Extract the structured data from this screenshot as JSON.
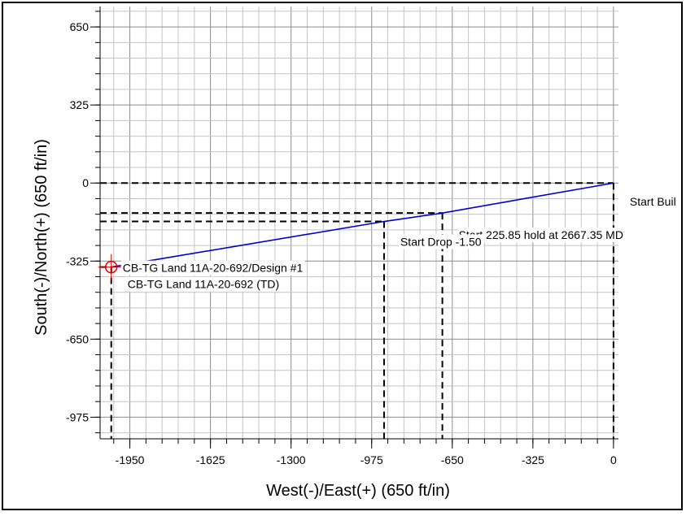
{
  "chart_data": {
    "type": "line",
    "xlabel": "West(-)/East(+) (650 ft/in)",
    "ylabel": "South(-)/North(+) (650 ft/in)",
    "xlim": [
      -2070,
      20
    ],
    "ylim": [
      -1065,
      735
    ],
    "x_ticks": [
      -1950,
      -1625,
      -1300,
      -975,
      -650,
      -325,
      0
    ],
    "y_ticks": [
      650,
      325,
      0,
      -325,
      -650,
      -975
    ],
    "x_tick_labels": [
      "-1950",
      "-1625",
      "-1300",
      "-975",
      "-650",
      "-325",
      "0"
    ],
    "y_tick_labels": [
      "650",
      "325",
      "0",
      "-325",
      "-650",
      "-975"
    ],
    "grid": true,
    "series": [
      {
        "color": "#0000cc",
        "x": [
          0,
          -690,
          -925,
          -2025
        ],
        "y": [
          0,
          -125,
          -160,
          -350
        ]
      }
    ],
    "markers": [
      {
        "x": 0,
        "y": 0
      },
      {
        "x": -690,
        "y": -125
      },
      {
        "x": -925,
        "y": -160
      },
      {
        "x": -2025,
        "y": -350
      }
    ],
    "target": {
      "x": -2025,
      "y": -350,
      "color": "#dd0000"
    },
    "annotations": [
      {
        "text": "Start Buil",
        "x": 0,
        "y": 0
      },
      {
        "text": "Start 225.85 hold at 2667.35 MD",
        "x": -690,
        "y": -125
      },
      {
        "text": "Start Drop -1.50",
        "x": -925,
        "y": -160
      },
      {
        "text": "CB-TG Land 11A-20-692/Design #1",
        "x": -2025,
        "y": -350
      },
      {
        "text": "CB-TG Land 11A-20-692 (TD)",
        "x": -2025,
        "y": -350
      }
    ]
  }
}
